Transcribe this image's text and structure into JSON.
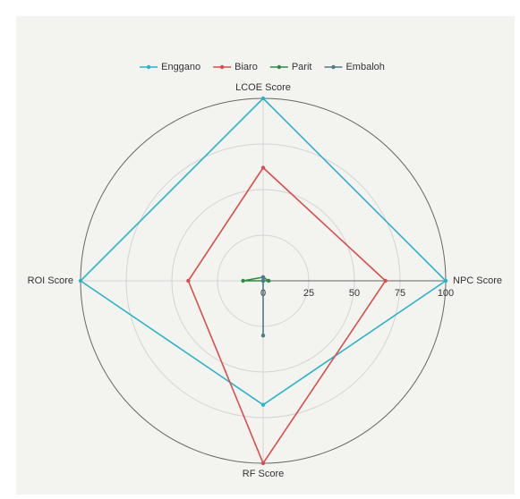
{
  "chart_data": {
    "type": "radar",
    "categories": [
      "LCOE Score",
      "NPC Score",
      "RF Score",
      "ROI Score"
    ],
    "rlim": [
      0,
      100
    ],
    "rticks": [
      0,
      25,
      50,
      75,
      100
    ],
    "grid": true,
    "series": [
      {
        "name": "Enggano",
        "color": "#2bb3c9",
        "values": [
          100,
          100,
          68,
          100
        ]
      },
      {
        "name": "Biaro",
        "color": "#d64f4f",
        "values": [
          62,
          67,
          100,
          41
        ]
      },
      {
        "name": "Parit",
        "color": "#2e8b45",
        "values": [
          2,
          3,
          0,
          11
        ]
      },
      {
        "name": "Embaloh",
        "color": "#4e7a8c",
        "values": [
          2,
          0,
          30,
          0
        ]
      }
    ]
  }
}
